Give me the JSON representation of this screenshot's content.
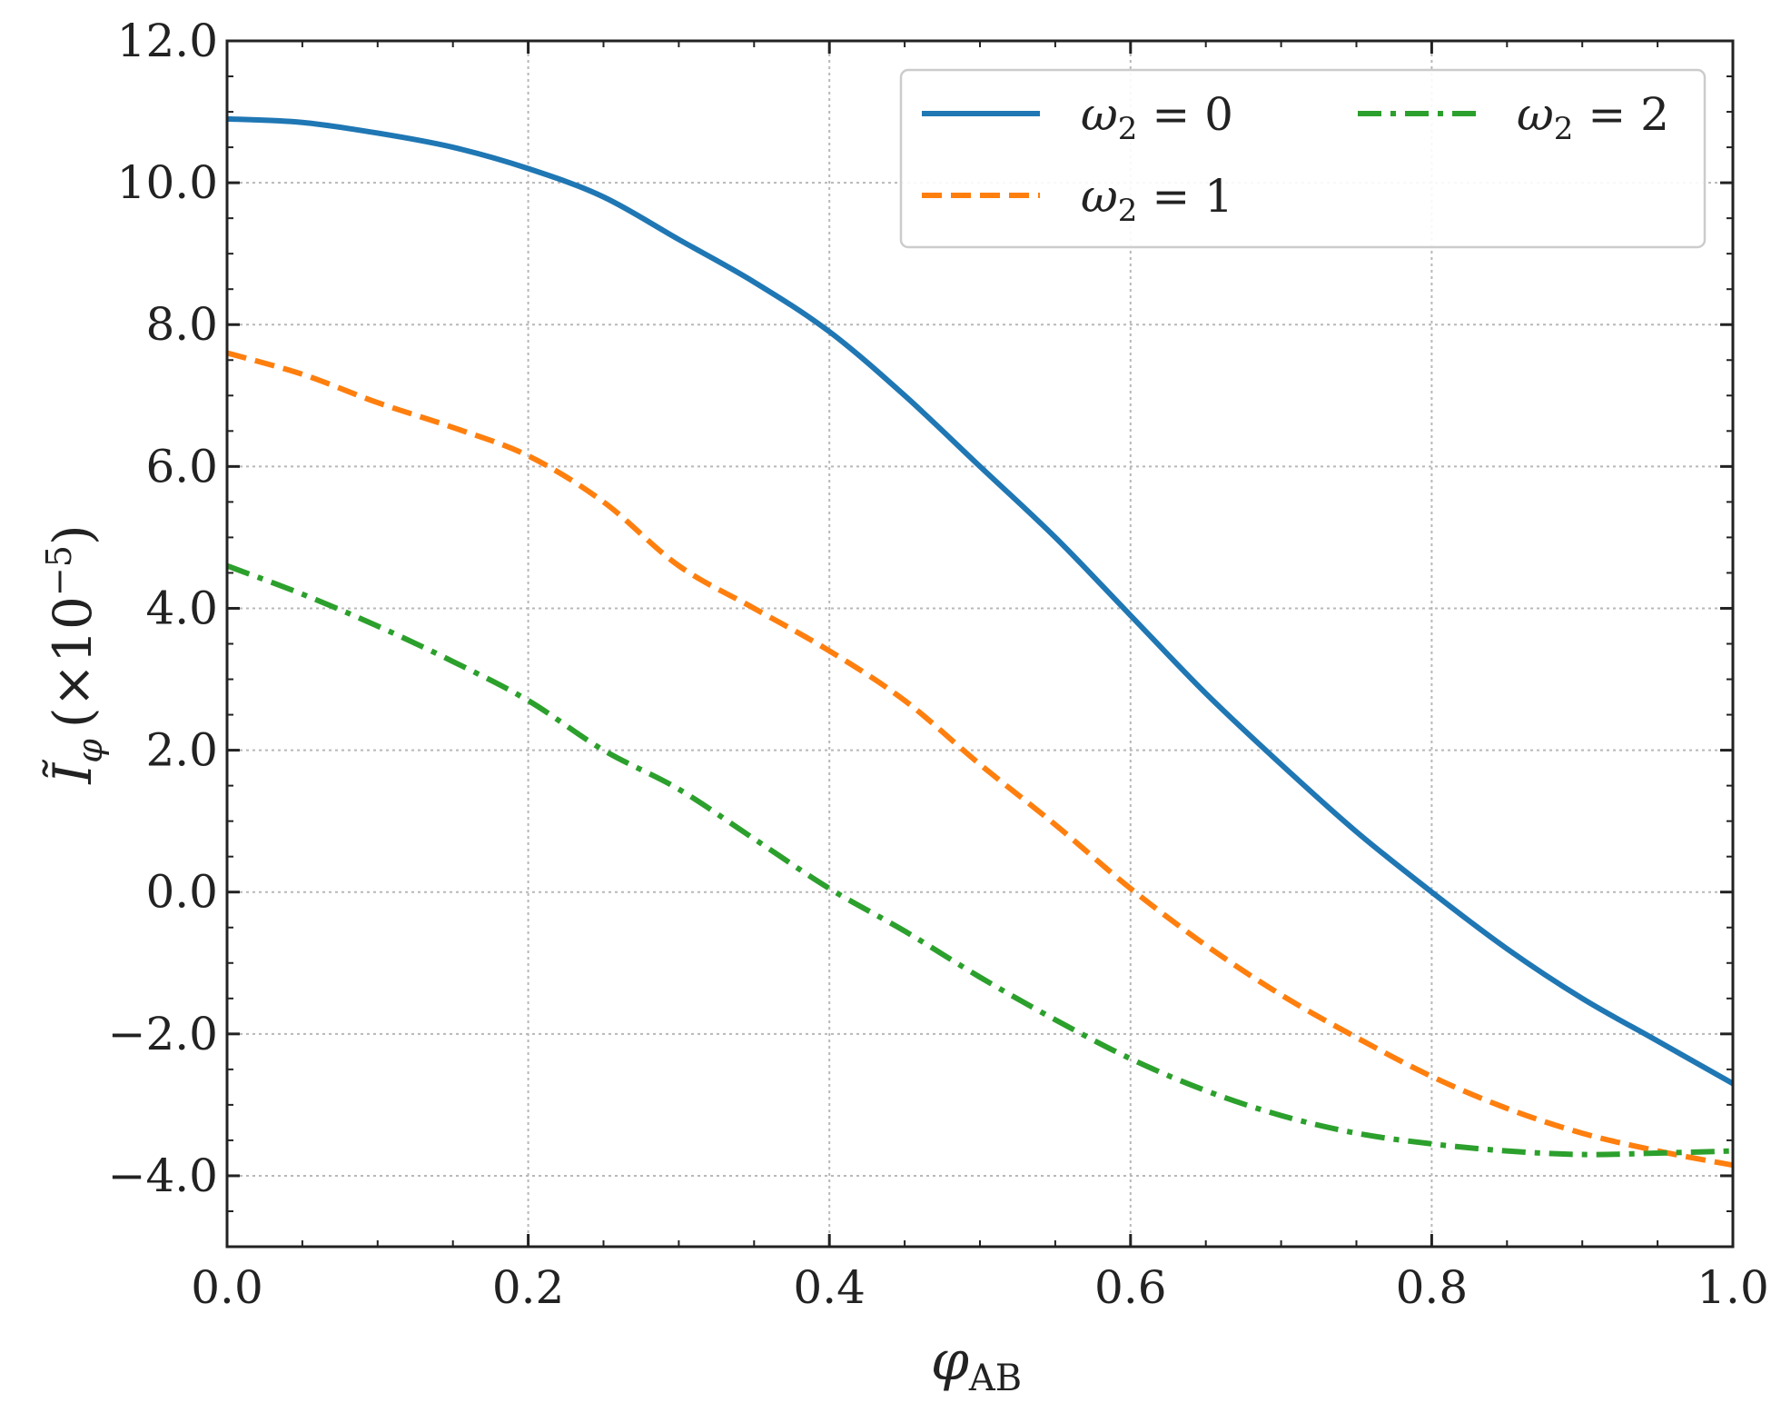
{
  "chart_data": {
    "type": "line",
    "xlabel": "φ",
    "xlabel_sub": "AB",
    "ylabel": "Ĩ",
    "ylabel_sub": "φ",
    "ylabel_scale_prefix": "(×10",
    "ylabel_scale_exp": "−5",
    "ylabel_scale_suffix": ")",
    "xlim": [
      0.0,
      1.0
    ],
    "ylim": [
      -5.0,
      12.0
    ],
    "x_ticks": [
      0.0,
      0.2,
      0.4,
      0.6,
      0.8,
      1.0
    ],
    "x_tick_labels": [
      "0.0",
      "0.2",
      "0.4",
      "0.6",
      "0.8",
      "1.0"
    ],
    "y_ticks": [
      -4.0,
      -2.0,
      0.0,
      2.0,
      4.0,
      6.0,
      8.0,
      10.0,
      12.0
    ],
    "y_tick_labels": [
      "−4.0",
      "−2.0",
      "0.0",
      "2.0",
      "4.0",
      "6.0",
      "8.0",
      "10.0",
      "12.0"
    ],
    "grid": true,
    "legend_position": "top-right",
    "x": [
      0.0,
      0.05,
      0.1,
      0.15,
      0.2,
      0.25,
      0.3,
      0.35,
      0.4,
      0.45,
      0.5,
      0.55,
      0.6,
      0.65,
      0.7,
      0.75,
      0.8,
      0.85,
      0.9,
      0.95,
      1.0
    ],
    "series": [
      {
        "name": "ω₂ = 0",
        "name_base": "ω",
        "name_sub": "2",
        "name_rest": " = 0",
        "color": "#1f77b4",
        "style": "solid",
        "values": [
          10.9,
          10.85,
          10.7,
          10.5,
          10.2,
          9.8,
          9.2,
          8.6,
          7.9,
          7.0,
          6.0,
          5.0,
          3.9,
          2.8,
          1.8,
          0.85,
          0.0,
          -0.8,
          -1.5,
          -2.1,
          -2.7
        ]
      },
      {
        "name": "ω₂ = 1",
        "name_base": "ω",
        "name_sub": "2",
        "name_rest": " = 1",
        "color": "#ff7f0e",
        "style": "dashed",
        "values": [
          7.6,
          7.3,
          6.9,
          6.55,
          6.15,
          5.5,
          4.6,
          4.0,
          3.4,
          2.7,
          1.8,
          0.95,
          0.05,
          -0.75,
          -1.45,
          -2.05,
          -2.6,
          -3.05,
          -3.4,
          -3.65,
          -3.85
        ]
      },
      {
        "name": "ω₂ = 2",
        "name_base": "ω",
        "name_sub": "2",
        "name_rest": " = 2",
        "color": "#2ca02c",
        "style": "dashdot",
        "values": [
          4.6,
          4.2,
          3.75,
          3.25,
          2.7,
          2.0,
          1.45,
          0.75,
          0.05,
          -0.55,
          -1.2,
          -1.8,
          -2.35,
          -2.8,
          -3.15,
          -3.4,
          -3.55,
          -3.65,
          -3.7,
          -3.68,
          -3.65
        ]
      }
    ]
  }
}
